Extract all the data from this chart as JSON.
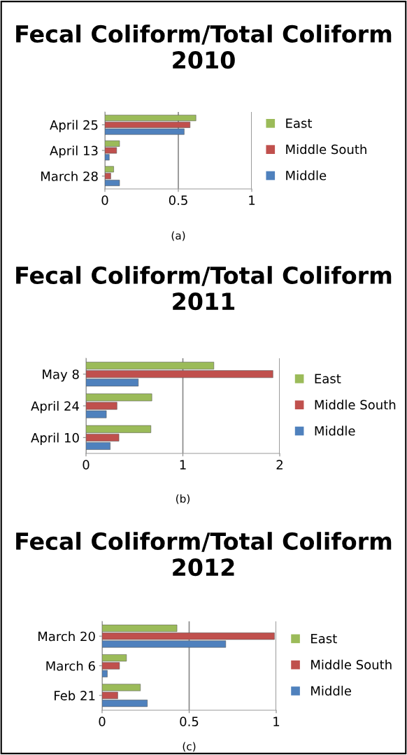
{
  "chart_data": [
    {
      "type": "bar",
      "orientation": "horizontal",
      "title": "Fecal Coliform/Total Coliform 2010",
      "categories": [
        "April 25",
        "April 13",
        "March 28"
      ],
      "series": [
        {
          "name": "East",
          "color": "#9bbb59",
          "values": [
            0.62,
            0.1,
            0.06
          ]
        },
        {
          "name": "Middle South",
          "color": "#c0504d",
          "values": [
            0.58,
            0.08,
            0.04
          ]
        },
        {
          "name": "Middle",
          "color": "#4f81bd",
          "values": [
            0.54,
            0.03,
            0.1
          ]
        }
      ],
      "xlim": [
        0,
        1
      ],
      "xticks": [
        0,
        0.5,
        1
      ],
      "grid": "x",
      "legend": "right",
      "annotations": [
        "(a)"
      ]
    },
    {
      "type": "bar",
      "orientation": "horizontal",
      "title": "Fecal Coliform/Total Coliform 2011",
      "categories": [
        "May 8",
        "April 24",
        "April 10"
      ],
      "series": [
        {
          "name": "East",
          "color": "#9bbb59",
          "values": [
            1.32,
            0.68,
            0.67
          ]
        },
        {
          "name": "Middle South",
          "color": "#c0504d",
          "values": [
            1.93,
            0.32,
            0.34
          ]
        },
        {
          "name": "Middle",
          "color": "#4f81bd",
          "values": [
            0.54,
            0.21,
            0.25
          ]
        }
      ],
      "xlim": [
        0,
        2
      ],
      "xticks": [
        0,
        1,
        2
      ],
      "grid": "x",
      "legend": "right",
      "annotations": [
        "(b)"
      ]
    },
    {
      "type": "bar",
      "orientation": "horizontal",
      "title": "Fecal Coliform/Total Coliform 2012",
      "categories": [
        "March 20",
        "March 6",
        "Feb 21"
      ],
      "series": [
        {
          "name": "East",
          "color": "#9bbb59",
          "values": [
            0.43,
            0.14,
            0.22
          ]
        },
        {
          "name": "Middle South",
          "color": "#c0504d",
          "values": [
            0.99,
            0.1,
            0.09
          ]
        },
        {
          "name": "Middle",
          "color": "#4f81bd",
          "values": [
            0.71,
            0.03,
            0.26
          ]
        }
      ],
      "xlim": [
        0,
        1
      ],
      "xticks": [
        0,
        0.5,
        1
      ],
      "grid": "x",
      "legend": "right",
      "annotations": [
        "(c)"
      ]
    }
  ]
}
